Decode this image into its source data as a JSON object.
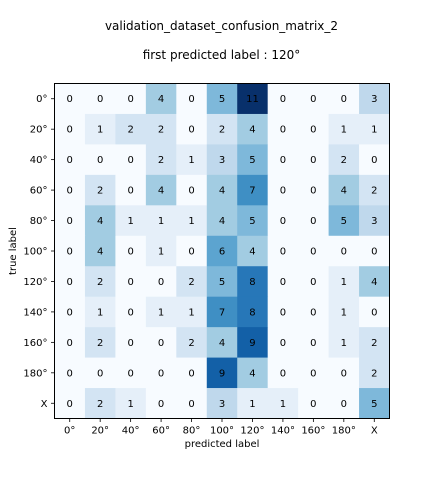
{
  "chart_data": {
    "type": "heatmap",
    "title": "validation_dataset_confusion_matrix_2",
    "subtitle": "first predicted label : 120°",
    "xlabel": "predicted label",
    "ylabel": "true label",
    "x_categories": [
      "0°",
      "20°",
      "40°",
      "60°",
      "80°",
      "100°",
      "120°",
      "140°",
      "160°",
      "180°",
      "X"
    ],
    "y_categories": [
      "0°",
      "20°",
      "40°",
      "60°",
      "80°",
      "100°",
      "120°",
      "140°",
      "160°",
      "180°",
      "X"
    ],
    "values": [
      [
        0,
        0,
        0,
        4,
        0,
        5,
        11,
        0,
        0,
        0,
        3
      ],
      [
        0,
        1,
        2,
        2,
        0,
        2,
        4,
        0,
        0,
        1,
        1
      ],
      [
        0,
        0,
        0,
        2,
        1,
        3,
        5,
        0,
        0,
        2,
        0
      ],
      [
        0,
        2,
        0,
        4,
        0,
        4,
        7,
        0,
        0,
        4,
        2
      ],
      [
        0,
        4,
        1,
        1,
        1,
        4,
        5,
        0,
        0,
        5,
        3
      ],
      [
        0,
        4,
        0,
        1,
        0,
        6,
        4,
        0,
        0,
        0,
        0
      ],
      [
        0,
        2,
        0,
        0,
        2,
        5,
        8,
        0,
        0,
        1,
        4
      ],
      [
        0,
        1,
        0,
        1,
        1,
        7,
        8,
        0,
        0,
        1,
        0
      ],
      [
        0,
        2,
        0,
        0,
        2,
        4,
        9,
        0,
        0,
        1,
        2
      ],
      [
        0,
        0,
        0,
        0,
        0,
        9,
        4,
        0,
        0,
        0,
        2
      ],
      [
        0,
        2,
        1,
        0,
        0,
        3,
        1,
        1,
        0,
        0,
        5
      ]
    ],
    "colormap": "Blues",
    "vmin": 0,
    "vmax": 11,
    "grid": false,
    "legend": "none"
  }
}
